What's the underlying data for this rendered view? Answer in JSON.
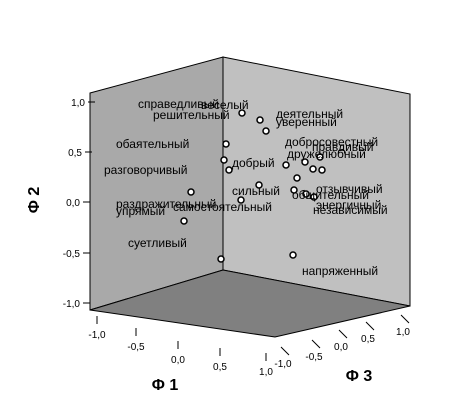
{
  "chart_data": {
    "type": "scatter",
    "dimensions": 3,
    "axes": {
      "z": {
        "label": "Φ 2",
        "ticks": [
          "1,0",
          "0,5",
          "0,0",
          "-0,5",
          "-1,0"
        ],
        "range": [
          -1.0,
          1.0
        ]
      },
      "x": {
        "label": "Φ 1",
        "ticks": [
          "-1,0",
          "-0,5",
          "0,0",
          "0,5",
          "1,0"
        ],
        "range": [
          -1.0,
          1.0
        ]
      },
      "y": {
        "label": "Φ 3",
        "ticks": [
          "1,0",
          "0,5",
          "0,0",
          "-0,5",
          "-1,0"
        ],
        "range": [
          -1.0,
          1.0
        ]
      }
    },
    "colors": {
      "left_wall": "#a9a9a9",
      "back_wall": "#c0c0c0",
      "floor": "#808080"
    },
    "points": [
      {
        "label": "справедливый"
      },
      {
        "label": "веселый"
      },
      {
        "label": "решительный"
      },
      {
        "label": "деятельный"
      },
      {
        "label": "уверенный"
      },
      {
        "label": "обаятельный"
      },
      {
        "label": "добросовестный"
      },
      {
        "label": "правдивый"
      },
      {
        "label": "дружелюбный"
      },
      {
        "label": "разговорчивый"
      },
      {
        "label": "добрый"
      },
      {
        "label": "отзывчивый"
      },
      {
        "label": "сильный"
      },
      {
        "label": "общительный"
      },
      {
        "label": "раздражительный"
      },
      {
        "label": "энергичный"
      },
      {
        "label": "упрямый"
      },
      {
        "label": "самостоятельный"
      },
      {
        "label": "независимый"
      },
      {
        "label": "суетливый"
      },
      {
        "label": "напряженный"
      }
    ]
  }
}
